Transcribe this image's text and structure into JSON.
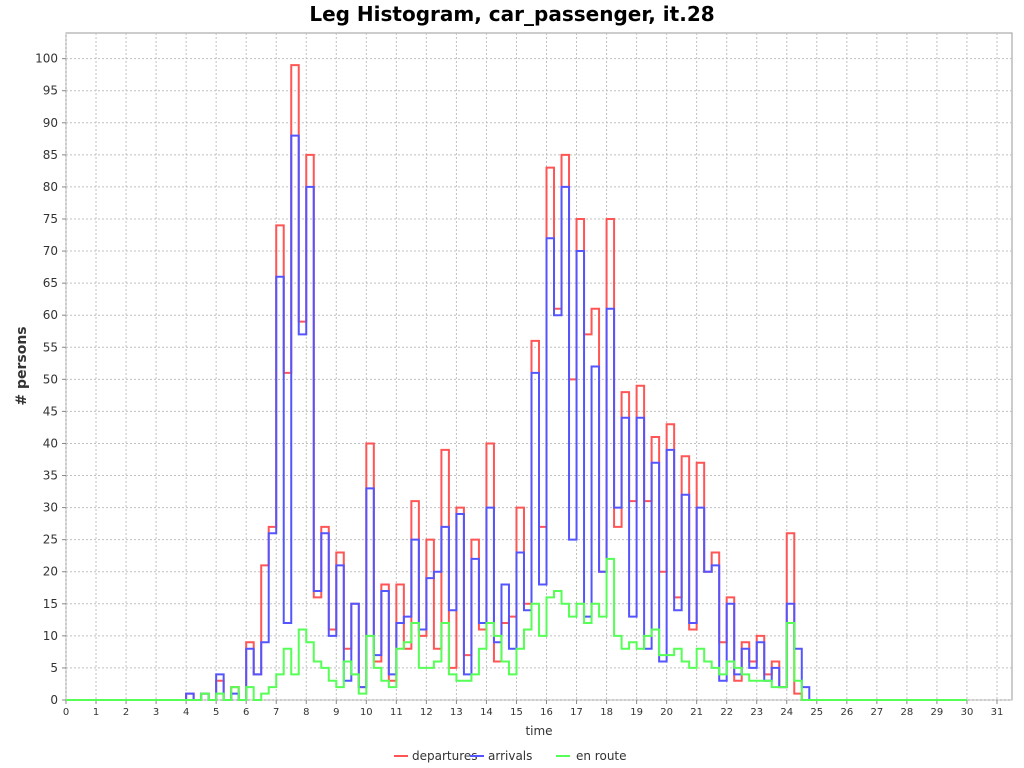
{
  "chart_data": {
    "type": "line",
    "title": "Leg Histogram, car_passenger, it.28",
    "xlabel": "time",
    "ylabel": "# persons",
    "xlim": [
      0,
      31.5
    ],
    "ylim": [
      0,
      104
    ],
    "x_ticks": [
      "0",
      "1",
      "2",
      "3",
      "4",
      "5",
      "6",
      "7",
      "8",
      "9",
      "10",
      "11",
      "12",
      "13",
      "14",
      "15",
      "16",
      "17",
      "18",
      "19",
      "20",
      "21",
      "22",
      "23",
      "24",
      "25",
      "26",
      "27",
      "28",
      "29",
      "30",
      "31"
    ],
    "y_ticks": [
      "0",
      "5",
      "10",
      "15",
      "20",
      "25",
      "30",
      "35",
      "40",
      "45",
      "50",
      "55",
      "60",
      "65",
      "70",
      "75",
      "80",
      "85",
      "90",
      "95",
      "100"
    ],
    "grid": true,
    "legend_position": "bottom",
    "bin_width": 0.25,
    "x_end": 30,
    "series": [
      {
        "name": "departures",
        "color": "#ff5555",
        "points": [
          [
            4.0,
            1
          ],
          [
            4.5,
            1
          ],
          [
            5.0,
            3
          ],
          [
            5.5,
            2
          ],
          [
            6.0,
            9
          ],
          [
            6.25,
            4
          ],
          [
            6.5,
            21
          ],
          [
            6.75,
            27
          ],
          [
            7.0,
            74
          ],
          [
            7.25,
            51
          ],
          [
            7.5,
            99
          ],
          [
            7.75,
            59
          ],
          [
            8.0,
            85
          ],
          [
            8.25,
            16
          ],
          [
            8.5,
            27
          ],
          [
            8.75,
            11
          ],
          [
            9.0,
            23
          ],
          [
            9.25,
            8
          ],
          [
            9.5,
            15
          ],
          [
            9.75,
            2
          ],
          [
            10.0,
            40
          ],
          [
            10.25,
            6
          ],
          [
            10.5,
            18
          ],
          [
            10.75,
            3
          ],
          [
            11.0,
            18
          ],
          [
            11.25,
            8
          ],
          [
            11.5,
            31
          ],
          [
            11.75,
            10
          ],
          [
            12.0,
            25
          ],
          [
            12.25,
            8
          ],
          [
            12.5,
            39
          ],
          [
            12.75,
            5
          ],
          [
            13.0,
            30
          ],
          [
            13.25,
            7
          ],
          [
            13.5,
            25
          ],
          [
            13.75,
            11
          ],
          [
            14.0,
            40
          ],
          [
            14.25,
            6
          ],
          [
            14.5,
            12
          ],
          [
            14.75,
            13
          ],
          [
            15.0,
            30
          ],
          [
            15.25,
            15
          ],
          [
            15.5,
            56
          ],
          [
            15.75,
            27
          ],
          [
            16.0,
            83
          ],
          [
            16.25,
            61
          ],
          [
            16.5,
            85
          ],
          [
            16.75,
            50
          ],
          [
            17.0,
            75
          ],
          [
            17.25,
            57
          ],
          [
            17.5,
            61
          ],
          [
            17.75,
            20
          ],
          [
            18.0,
            75
          ],
          [
            18.25,
            27
          ],
          [
            18.5,
            48
          ],
          [
            18.75,
            31
          ],
          [
            19.0,
            49
          ],
          [
            19.25,
            31
          ],
          [
            19.5,
            41
          ],
          [
            19.75,
            20
          ],
          [
            20.0,
            43
          ],
          [
            20.25,
            16
          ],
          [
            20.5,
            38
          ],
          [
            20.75,
            11
          ],
          [
            21.0,
            37
          ],
          [
            21.25,
            20
          ],
          [
            21.5,
            23
          ],
          [
            21.75,
            9
          ],
          [
            22.0,
            16
          ],
          [
            22.25,
            3
          ],
          [
            22.5,
            9
          ],
          [
            22.75,
            6
          ],
          [
            23.0,
            10
          ],
          [
            23.25,
            4
          ],
          [
            23.5,
            6
          ],
          [
            23.75,
            2
          ],
          [
            24.0,
            26
          ],
          [
            24.25,
            1
          ]
        ]
      },
      {
        "name": "arrivals",
        "color": "#5555ff",
        "points": [
          [
            4.0,
            1
          ],
          [
            4.5,
            1
          ],
          [
            5.0,
            4
          ],
          [
            5.5,
            1
          ],
          [
            6.0,
            8
          ],
          [
            6.25,
            4
          ],
          [
            6.5,
            9
          ],
          [
            6.75,
            26
          ],
          [
            7.0,
            66
          ],
          [
            7.25,
            12
          ],
          [
            7.5,
            88
          ],
          [
            7.75,
            57
          ],
          [
            8.0,
            80
          ],
          [
            8.25,
            17
          ],
          [
            8.5,
            26
          ],
          [
            8.75,
            10
          ],
          [
            9.0,
            21
          ],
          [
            9.25,
            3
          ],
          [
            9.5,
            15
          ],
          [
            9.75,
            2
          ],
          [
            10.0,
            33
          ],
          [
            10.25,
            7
          ],
          [
            10.5,
            17
          ],
          [
            10.75,
            4
          ],
          [
            11.0,
            12
          ],
          [
            11.25,
            13
          ],
          [
            11.5,
            25
          ],
          [
            11.75,
            11
          ],
          [
            12.0,
            19
          ],
          [
            12.25,
            20
          ],
          [
            12.5,
            27
          ],
          [
            12.75,
            14
          ],
          [
            13.0,
            29
          ],
          [
            13.25,
            4
          ],
          [
            13.5,
            22
          ],
          [
            13.75,
            12
          ],
          [
            14.0,
            30
          ],
          [
            14.25,
            9
          ],
          [
            14.5,
            18
          ],
          [
            14.75,
            8
          ],
          [
            15.0,
            23
          ],
          [
            15.25,
            14
          ],
          [
            15.5,
            51
          ],
          [
            15.75,
            18
          ],
          [
            16.0,
            72
          ],
          [
            16.25,
            60
          ],
          [
            16.5,
            80
          ],
          [
            16.75,
            25
          ],
          [
            17.0,
            70
          ],
          [
            17.25,
            13
          ],
          [
            17.5,
            52
          ],
          [
            17.75,
            20
          ],
          [
            18.0,
            61
          ],
          [
            18.25,
            30
          ],
          [
            18.5,
            44
          ],
          [
            18.75,
            13
          ],
          [
            19.0,
            44
          ],
          [
            19.25,
            8
          ],
          [
            19.5,
            37
          ],
          [
            19.75,
            6
          ],
          [
            20.0,
            39
          ],
          [
            20.25,
            14
          ],
          [
            20.5,
            32
          ],
          [
            20.75,
            12
          ],
          [
            21.0,
            30
          ],
          [
            21.25,
            20
          ],
          [
            21.5,
            21
          ],
          [
            21.75,
            3
          ],
          [
            22.0,
            15
          ],
          [
            22.25,
            4
          ],
          [
            22.5,
            8
          ],
          [
            22.75,
            5
          ],
          [
            23.0,
            9
          ],
          [
            23.25,
            3
          ],
          [
            23.5,
            5
          ],
          [
            23.75,
            2
          ],
          [
            24.0,
            15
          ],
          [
            24.25,
            8
          ],
          [
            24.5,
            2
          ]
        ]
      },
      {
        "name": "en route",
        "color": "#55ff55",
        "points": [
          [
            4.5,
            1
          ],
          [
            5.0,
            1
          ],
          [
            5.5,
            2
          ],
          [
            6.0,
            2
          ],
          [
            6.5,
            1
          ],
          [
            6.75,
            2
          ],
          [
            7.0,
            4
          ],
          [
            7.25,
            8
          ],
          [
            7.5,
            4
          ],
          [
            7.75,
            11
          ],
          [
            8.0,
            9
          ],
          [
            8.25,
            6
          ],
          [
            8.5,
            5
          ],
          [
            8.75,
            3
          ],
          [
            9.0,
            2
          ],
          [
            9.25,
            6
          ],
          [
            9.5,
            4
          ],
          [
            9.75,
            1
          ],
          [
            10.0,
            10
          ],
          [
            10.25,
            5
          ],
          [
            10.5,
            3
          ],
          [
            10.75,
            2
          ],
          [
            11.0,
            8
          ],
          [
            11.25,
            9
          ],
          [
            11.5,
            12
          ],
          [
            11.75,
            5
          ],
          [
            12.0,
            5
          ],
          [
            12.25,
            6
          ],
          [
            12.5,
            12
          ],
          [
            12.75,
            4
          ],
          [
            13.0,
            3
          ],
          [
            13.25,
            3
          ],
          [
            13.5,
            4
          ],
          [
            13.75,
            8
          ],
          [
            14.0,
            12
          ],
          [
            14.25,
            10
          ],
          [
            14.5,
            6
          ],
          [
            14.75,
            4
          ],
          [
            15.0,
            8
          ],
          [
            15.25,
            11
          ],
          [
            15.5,
            15
          ],
          [
            15.75,
            10
          ],
          [
            16.0,
            16
          ],
          [
            16.25,
            17
          ],
          [
            16.5,
            15
          ],
          [
            16.75,
            13
          ],
          [
            17.0,
            15
          ],
          [
            17.25,
            12
          ],
          [
            17.5,
            15
          ],
          [
            17.75,
            13
          ],
          [
            18.0,
            22
          ],
          [
            18.25,
            10
          ],
          [
            18.5,
            8
          ],
          [
            18.75,
            9
          ],
          [
            19.0,
            8
          ],
          [
            19.25,
            10
          ],
          [
            19.5,
            11
          ],
          [
            19.75,
            7
          ],
          [
            20.0,
            7
          ],
          [
            20.25,
            8
          ],
          [
            20.5,
            6
          ],
          [
            20.75,
            5
          ],
          [
            21.0,
            8
          ],
          [
            21.25,
            6
          ],
          [
            21.5,
            5
          ],
          [
            21.75,
            4
          ],
          [
            22.0,
            6
          ],
          [
            22.25,
            5
          ],
          [
            22.5,
            4
          ],
          [
            22.75,
            3
          ],
          [
            23.0,
            3
          ],
          [
            23.25,
            3
          ],
          [
            23.5,
            2
          ],
          [
            23.75,
            2
          ],
          [
            24.0,
            12
          ],
          [
            24.25,
            3
          ]
        ]
      }
    ]
  }
}
